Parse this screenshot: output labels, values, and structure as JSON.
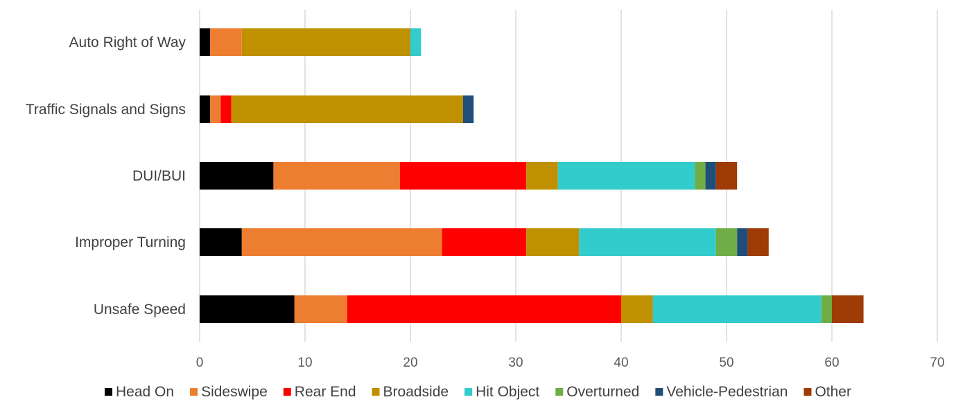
{
  "chart_data": {
    "type": "bar",
    "orientation": "horizontal",
    "stacked": true,
    "title": "",
    "xlabel": "",
    "ylabel": "",
    "xlim": [
      0,
      70
    ],
    "x_ticks": [
      0,
      10,
      20,
      30,
      40,
      50,
      60,
      70
    ],
    "grid": "vertical",
    "legend_position": "bottom",
    "categories": [
      "Auto Right of Way",
      "Traffic Signals and Signs",
      "DUI/BUI",
      "Improper Turning",
      "Unsafe Speed"
    ],
    "series": [
      {
        "name": "Head On",
        "color": "#000000",
        "values": [
          1,
          1,
          7,
          4,
          9
        ]
      },
      {
        "name": "Sideswipe",
        "color": "#ed7d31",
        "values": [
          3,
          1,
          12,
          19,
          5
        ]
      },
      {
        "name": "Rear End",
        "color": "#ff0000",
        "values": [
          0,
          1,
          12,
          8,
          26
        ]
      },
      {
        "name": "Broadside",
        "color": "#bf9000",
        "values": [
          16,
          22,
          3,
          5,
          3
        ]
      },
      {
        "name": "Hit Object",
        "color": "#33cccc",
        "values": [
          1,
          0,
          13,
          13,
          16
        ]
      },
      {
        "name": "Overturned",
        "color": "#70ad47",
        "values": [
          0,
          0,
          1,
          2,
          1
        ]
      },
      {
        "name": "Vehicle-Pedestrian",
        "color": "#1f4e79",
        "values": [
          0,
          1,
          1,
          1,
          0
        ]
      },
      {
        "name": "Other",
        "color": "#9e3b06",
        "values": [
          0,
          0,
          2,
          2,
          3
        ]
      }
    ]
  }
}
